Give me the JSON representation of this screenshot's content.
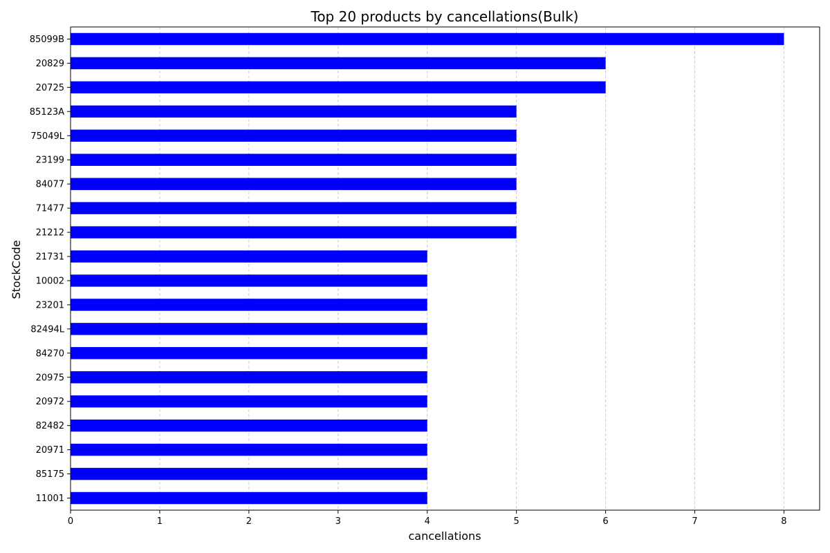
{
  "chart_data": {
    "type": "bar",
    "orientation": "horizontal",
    "title": "Top 20 products by cancellations(Bulk)",
    "xlabel": "cancellations",
    "ylabel": "StockCode",
    "categories": [
      "85099B",
      "20829",
      "20725",
      "85123A",
      "75049L",
      "23199",
      "84077",
      "71477",
      "21212",
      "21731",
      "10002",
      "23201",
      "82494L",
      "84270",
      "20975",
      "20972",
      "82482",
      "20971",
      "85175",
      "11001"
    ],
    "values": [
      8,
      6,
      6,
      5,
      5,
      5,
      5,
      5,
      5,
      4,
      4,
      4,
      4,
      4,
      4,
      4,
      4,
      4,
      4,
      4
    ],
    "xlim": [
      0,
      8.4
    ],
    "xticks": [
      0,
      1,
      2,
      3,
      4,
      5,
      6,
      7,
      8
    ],
    "grid": "x-axis dashed",
    "colors": {
      "bar": "#0000ff",
      "grid": "#cccccc",
      "axis": "#000000"
    }
  }
}
